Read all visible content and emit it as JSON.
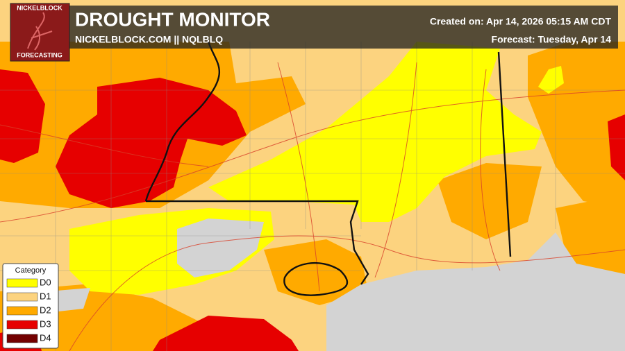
{
  "logo": {
    "top": "NICKELBLOCK",
    "bottom": "FORECASTING"
  },
  "header": {
    "title": "DROUGHT MONITOR",
    "subtitle": "NICKELBLOCK.COM || NQLBLQ",
    "created": "Created on: Apr 14, 2026 05:15 AM CDT",
    "forecast": "Forecast: Tuesday, Apr 14"
  },
  "legend": {
    "title": "Category",
    "items": [
      {
        "label": "D0",
        "color": "#ffff00"
      },
      {
        "label": "D1",
        "color": "#fcd37f"
      },
      {
        "label": "D2",
        "color": "#ffaa00"
      },
      {
        "label": "D3",
        "color": "#e60000"
      },
      {
        "label": "D4",
        "color": "#730000"
      }
    ]
  }
}
